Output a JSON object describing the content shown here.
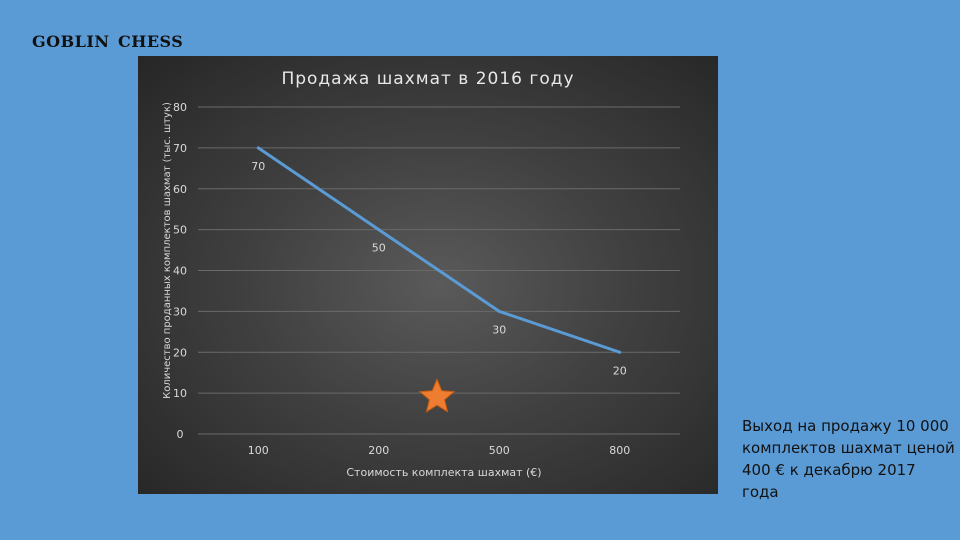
{
  "slide": {
    "title": "goblin chess",
    "note": "Выход на продажу 10 000 комплектов шахмат ценой 400 € к декабрю 2017 года"
  },
  "colors": {
    "background": "#5b9bd5",
    "line": "#5b9bd5",
    "star": "#ed7d31",
    "text": "#d9d9d9"
  },
  "chart_data": {
    "type": "line",
    "title": "Продажа шахмат в 2016 году",
    "xlabel": "Стоимость комплекта шахмат (€)",
    "ylabel": "Количество проданных комплектов шахмат (тыс. штук)",
    "categories": [
      "100",
      "200",
      "500",
      "800"
    ],
    "series": [
      {
        "values": [
          70,
          50,
          30,
          20
        ]
      }
    ],
    "data_labels": [
      "70",
      "50",
      "30",
      "20"
    ],
    "ylim": [
      0,
      80
    ],
    "yticks": [
      "0",
      "10",
      "20",
      "30",
      "40",
      "50",
      "60",
      "70",
      "80"
    ],
    "grid": true,
    "marker": {
      "shape": "star",
      "x_between": [
        "200",
        "500"
      ],
      "y": 9
    }
  }
}
